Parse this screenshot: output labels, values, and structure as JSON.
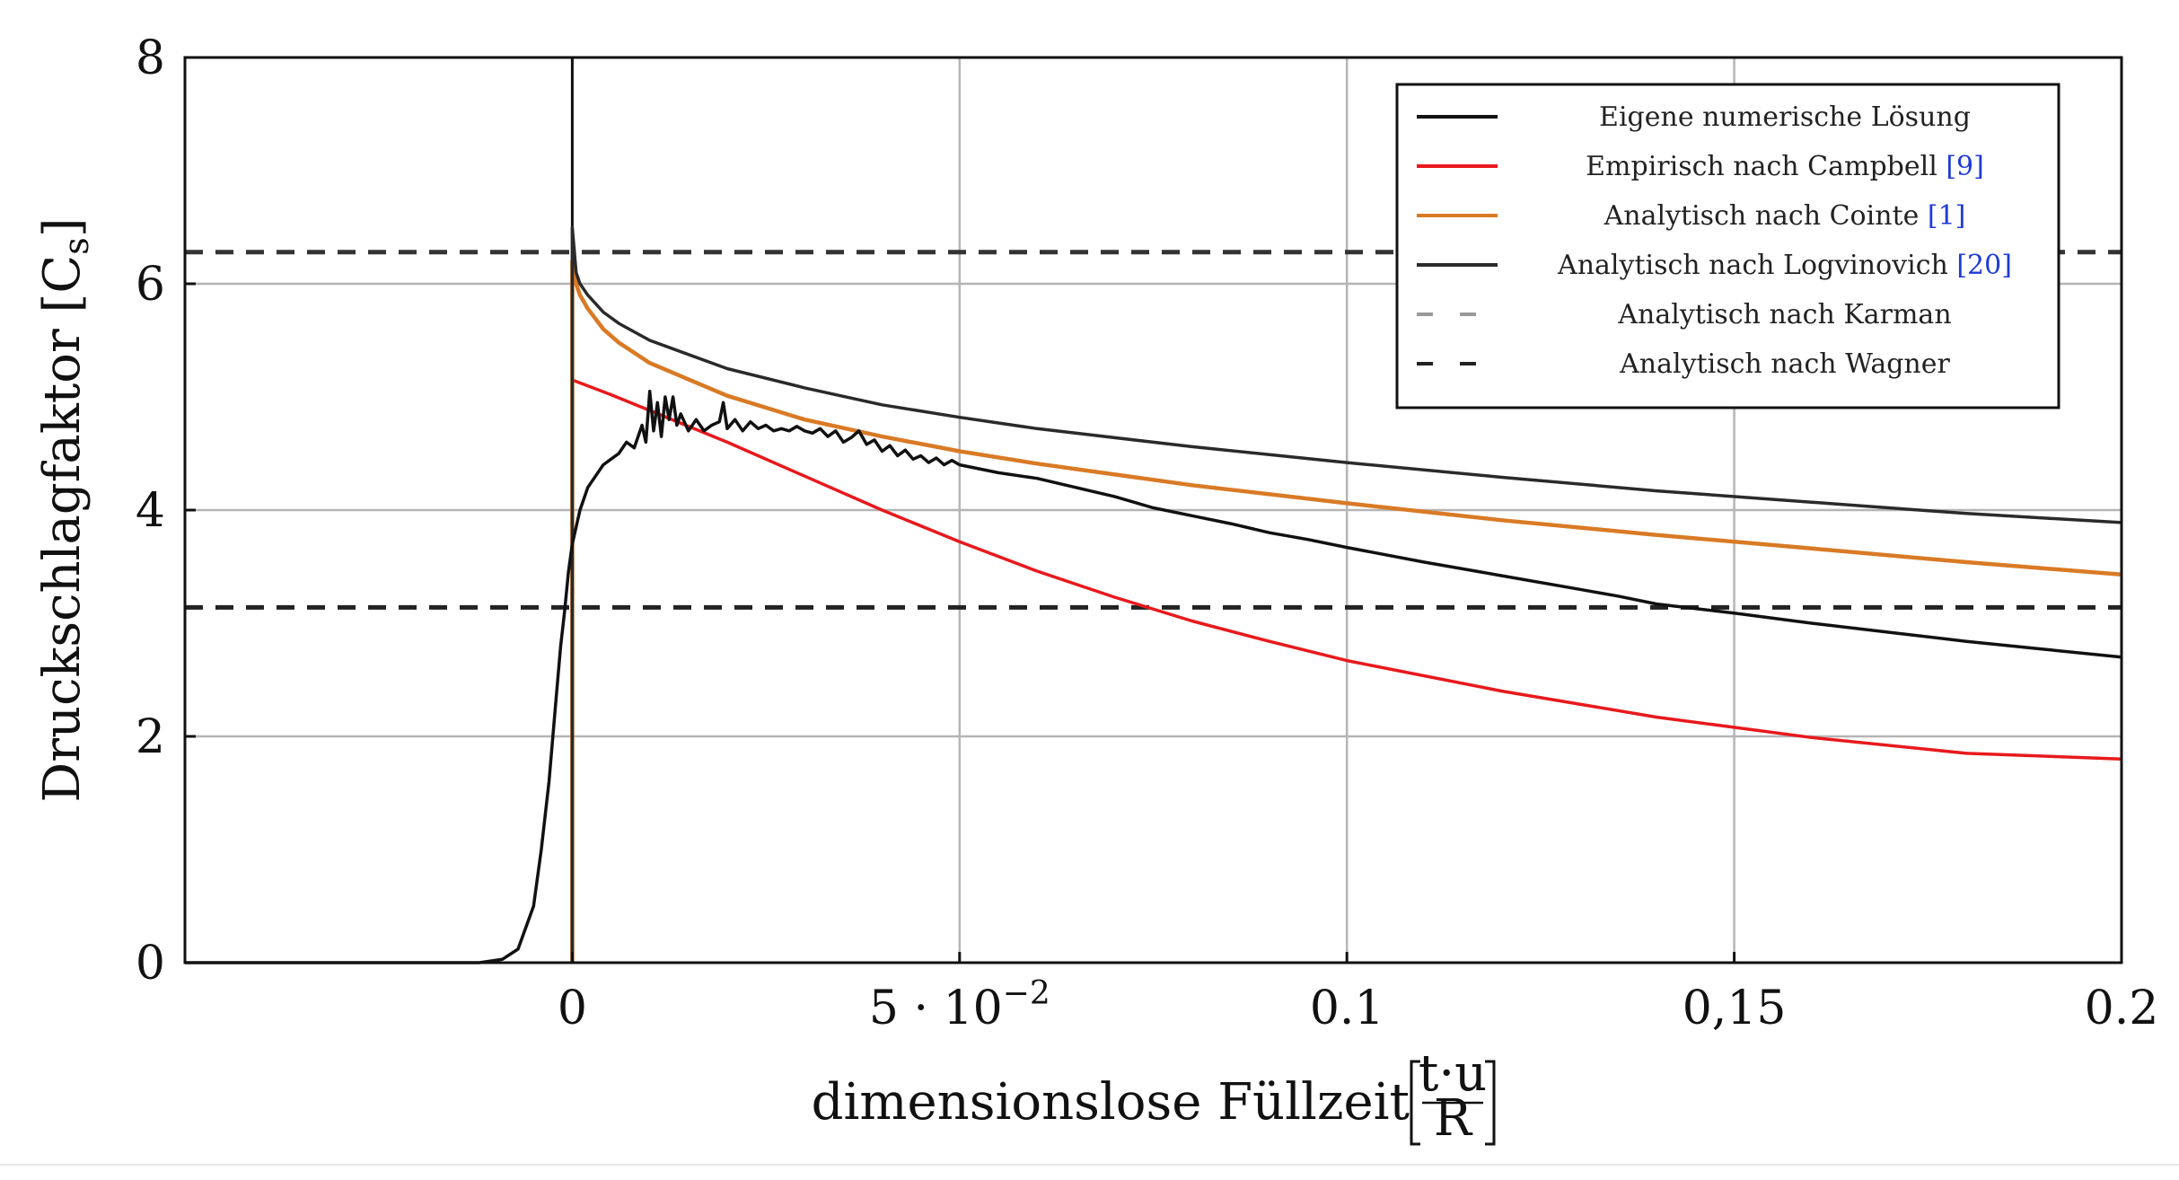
{
  "chart_data": {
    "type": "line",
    "title": "",
    "xlabel": "dimensionslose Füllzeit",
    "xlabel_fraction": {
      "num": "t·u",
      "den": "R"
    },
    "ylabel": "Druckschlagfaktor",
    "ylabel_symbol": "C",
    "ylabel_subscript": "s",
    "xlim": [
      -0.05,
      0.2
    ],
    "ylim": [
      0,
      8
    ],
    "grid": true,
    "x_ticks": [
      {
        "value": 0,
        "label": "0"
      },
      {
        "value": 0.05,
        "label": "5 · 10",
        "sup": "−2"
      },
      {
        "value": 0.1,
        "label": "0.1"
      },
      {
        "value": 0.15,
        "label": "0,15"
      },
      {
        "value": 0.2,
        "label": "0.2"
      }
    ],
    "y_ticks": [
      {
        "value": 0,
        "label": "0"
      },
      {
        "value": 2,
        "label": "2"
      },
      {
        "value": 4,
        "label": "4"
      },
      {
        "value": 6,
        "label": "6"
      },
      {
        "value": 8,
        "label": "8"
      }
    ],
    "legend_position": "top-right",
    "series": [
      {
        "name": "Eigene numerische Lösung",
        "cite": "",
        "color": "#111111",
        "style": "solid",
        "x": [
          -0.05,
          -0.012,
          -0.009,
          -0.007,
          -0.005,
          -0.004,
          -0.003,
          -0.0025,
          -0.002,
          -0.0015,
          -0.001,
          -0.0005,
          0.0,
          0.0005,
          0.001,
          0.002,
          0.003,
          0.004,
          0.005,
          0.006,
          0.007,
          0.008,
          0.009,
          0.0095,
          0.01,
          0.0105,
          0.011,
          0.0115,
          0.012,
          0.0125,
          0.013,
          0.0135,
          0.014,
          0.015,
          0.016,
          0.017,
          0.018,
          0.019,
          0.0195,
          0.02,
          0.021,
          0.022,
          0.023,
          0.024,
          0.025,
          0.026,
          0.027,
          0.028,
          0.029,
          0.03,
          0.031,
          0.032,
          0.033,
          0.034,
          0.035,
          0.036,
          0.037,
          0.038,
          0.039,
          0.04,
          0.041,
          0.042,
          0.043,
          0.044,
          0.045,
          0.046,
          0.047,
          0.048,
          0.049,
          0.05,
          0.055,
          0.06,
          0.065,
          0.07,
          0.075,
          0.08,
          0.085,
          0.09,
          0.095,
          0.1,
          0.11,
          0.12,
          0.13,
          0.135,
          0.14,
          0.15,
          0.16,
          0.17,
          0.18,
          0.19,
          0.2
        ],
        "values": [
          0,
          0.0,
          0.03,
          0.12,
          0.5,
          1.0,
          1.6,
          2.0,
          2.4,
          2.8,
          3.1,
          3.45,
          3.7,
          3.85,
          4.0,
          4.2,
          4.3,
          4.4,
          4.45,
          4.5,
          4.6,
          4.55,
          4.75,
          4.6,
          5.05,
          4.7,
          4.95,
          4.65,
          5.0,
          4.8,
          5.0,
          4.75,
          4.85,
          4.7,
          4.8,
          4.7,
          4.75,
          4.78,
          4.95,
          4.72,
          4.8,
          4.7,
          4.78,
          4.72,
          4.75,
          4.7,
          4.72,
          4.7,
          4.74,
          4.7,
          4.68,
          4.72,
          4.65,
          4.7,
          4.6,
          4.64,
          4.7,
          4.58,
          4.62,
          4.52,
          4.57,
          4.48,
          4.53,
          4.45,
          4.48,
          4.42,
          4.46,
          4.4,
          4.44,
          4.4,
          4.33,
          4.28,
          4.2,
          4.12,
          4.02,
          3.95,
          3.88,
          3.8,
          3.74,
          3.67,
          3.54,
          3.42,
          3.3,
          3.24,
          3.17,
          3.09,
          3.0,
          2.92,
          2.84,
          2.77,
          2.7
        ]
      },
      {
        "name": "Empirisch nach Campbell",
        "cite": "[9]",
        "color": "#e8191c",
        "style": "solid",
        "x": [
          0.0,
          0.0,
          0.005,
          0.01,
          0.02,
          0.03,
          0.04,
          0.05,
          0.06,
          0.07,
          0.08,
          0.09,
          0.1,
          0.12,
          0.14,
          0.16,
          0.18,
          0.2
        ],
        "values": [
          0,
          5.15,
          5.02,
          4.88,
          4.6,
          4.3,
          4.0,
          3.72,
          3.46,
          3.23,
          3.02,
          2.84,
          2.67,
          2.4,
          2.17,
          1.99,
          1.85,
          1.8
        ]
      },
      {
        "name": "Analytisch nach Cointe",
        "cite": "[1]",
        "color": "#d97a25",
        "style": "solid",
        "x": [
          0.0,
          0.0,
          0.0005,
          0.001,
          0.002,
          0.004,
          0.006,
          0.01,
          0.02,
          0.03,
          0.04,
          0.05,
          0.06,
          0.08,
          0.1,
          0.12,
          0.14,
          0.16,
          0.18,
          0.2
        ],
        "values": [
          0,
          6.2,
          6.0,
          5.9,
          5.78,
          5.6,
          5.48,
          5.3,
          5.01,
          4.8,
          4.65,
          4.52,
          4.41,
          4.22,
          4.06,
          3.91,
          3.78,
          3.66,
          3.54,
          3.43
        ]
      },
      {
        "name": "Analytisch nach Logvinovich",
        "cite": "[20]",
        "color": "#2a2a2a",
        "style": "solid",
        "x": [
          0.0,
          0.0,
          0.0005,
          0.001,
          0.002,
          0.004,
          0.006,
          0.01,
          0.02,
          0.03,
          0.04,
          0.05,
          0.06,
          0.08,
          0.1,
          0.12,
          0.14,
          0.16,
          0.18,
          0.2
        ],
        "values": [
          0,
          6.5,
          6.1,
          6.0,
          5.9,
          5.75,
          5.65,
          5.5,
          5.25,
          5.08,
          4.93,
          4.82,
          4.72,
          4.56,
          4.42,
          4.29,
          4.17,
          4.07,
          3.97,
          3.89
        ]
      },
      {
        "name": "Analytisch nach Karman",
        "cite": "",
        "color": "#999999",
        "style": "dashed",
        "x": [],
        "values": []
      },
      {
        "name": "Analytisch nach Wagner",
        "cite": "",
        "color": "#222222",
        "style": "dashed",
        "x": [],
        "values": []
      }
    ],
    "reference_lines": [
      {
        "y": 6.28,
        "color": "#333333",
        "style": "dashed"
      },
      {
        "y": 3.14,
        "color": "#222222",
        "style": "dashed"
      }
    ]
  }
}
